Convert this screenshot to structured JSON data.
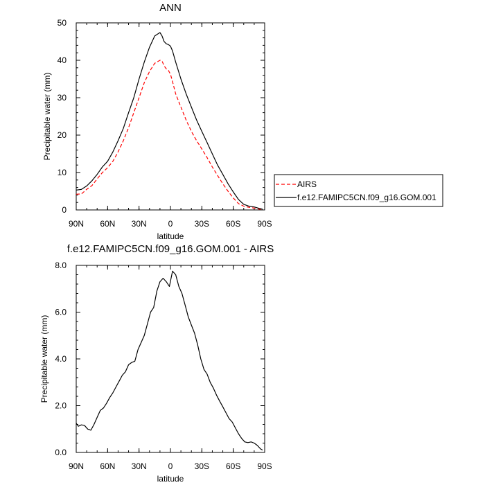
{
  "chart_data": [
    {
      "type": "line",
      "title": "ANN",
      "xlabel": "latitude",
      "ylabel": "Precipitable water (mm)",
      "xlim": [
        90,
        -90
      ],
      "ylim": [
        0,
        50
      ],
      "xticks": [
        90,
        60,
        30,
        0,
        -30,
        -60,
        -90
      ],
      "xtick_labels": [
        "90N",
        "60N",
        "30N",
        "0",
        "30S",
        "60S",
        "90S"
      ],
      "yticks": [
        0,
        10,
        20,
        30,
        40,
        50
      ],
      "ytick_labels": [
        "0",
        "10",
        "20",
        "30",
        "40",
        "50"
      ],
      "grid": false,
      "legend": {
        "position": "right",
        "entries": [
          "AIRS",
          "f.e12.FAMIPC5CN.f09_g16.GOM.001"
        ]
      },
      "series": [
        {
          "name": "AIRS",
          "color": "#ff0000",
          "dash": "dashed",
          "x": [
            90,
            85,
            80,
            75,
            70,
            65,
            60,
            55,
            50,
            45,
            40,
            35,
            30,
            25,
            20,
            15,
            10,
            8,
            6,
            4,
            2,
            0,
            -2,
            -5,
            -10,
            -15,
            -20,
            -25,
            -30,
            -35,
            -40,
            -45,
            -50,
            -55,
            -60,
            -65,
            -70,
            -75,
            -80,
            -85,
            -88
          ],
          "y": [
            4.2,
            4.3,
            5.5,
            6.5,
            8.3,
            10,
            11.3,
            13,
            15.5,
            18.5,
            22,
            26,
            30,
            34,
            37,
            39.2,
            40,
            39.8,
            38.5,
            37.7,
            37.3,
            36.3,
            34.3,
            31,
            27.5,
            24,
            21,
            18.5,
            16.3,
            14,
            11.5,
            9.2,
            7,
            5,
            3.2,
            1.7,
            1,
            0.7,
            0.5,
            0.2,
            0.1
          ]
        },
        {
          "name": "f.e12.FAMIPC5CN.f09_g16.GOM.001",
          "color": "#000000",
          "dash": "solid",
          "x": [
            90,
            85,
            80,
            75,
            70,
            65,
            60,
            55,
            50,
            45,
            40,
            35,
            30,
            25,
            20,
            15,
            10,
            8,
            6,
            4,
            2,
            0,
            -2,
            -5,
            -10,
            -15,
            -20,
            -25,
            -30,
            -35,
            -40,
            -45,
            -50,
            -55,
            -60,
            -65,
            -70,
            -75,
            -80,
            -85,
            -88
          ],
          "y": [
            5.3,
            5.5,
            6.4,
            7.8,
            9.5,
            11.5,
            13,
            15.5,
            18.5,
            21.8,
            26,
            30,
            35,
            39.5,
            43.5,
            46.5,
            47.4,
            46.5,
            45,
            44.4,
            44.2,
            43.8,
            42.5,
            39.5,
            35,
            31,
            27.5,
            24,
            21,
            18,
            15,
            12,
            9.5,
            7,
            4.8,
            2.8,
            1.5,
            1,
            0.8,
            0.4,
            0.2
          ]
        }
      ]
    },
    {
      "type": "line",
      "title": "f.e12.FAMIPC5CN.f09_g16.GOM.001 - AIRS",
      "xlabel": "latitude",
      "ylabel": "Precipitable water (mm)",
      "xlim": [
        90,
        -90
      ],
      "ylim": [
        0,
        8
      ],
      "xticks": [
        90,
        60,
        30,
        0,
        -30,
        -60,
        -90
      ],
      "xtick_labels": [
        "90N",
        "60N",
        "30N",
        "0",
        "30S",
        "60S",
        "90S"
      ],
      "yticks": [
        0,
        2,
        4,
        6,
        8
      ],
      "ytick_labels": [
        "0.0",
        "2.0",
        "4.0",
        "6.0",
        "8.0"
      ],
      "grid": false,
      "series": [
        {
          "color": "#000000",
          "dash": "solid",
          "x": [
            90,
            88,
            85,
            82,
            79,
            76,
            73,
            70,
            67,
            64,
            61,
            58,
            55,
            52,
            49,
            46,
            43,
            40,
            37,
            34,
            31,
            28,
            25,
            22,
            19,
            16,
            13,
            10,
            7,
            4,
            1,
            -2,
            -5,
            -8,
            -11,
            -14,
            -17,
            -20,
            -23,
            -26,
            -29,
            -32,
            -35,
            -38,
            -41,
            -44,
            -47,
            -50,
            -53,
            -56,
            -59,
            -62,
            -65,
            -68,
            -71,
            -74,
            -77,
            -80,
            -83,
            -86,
            -88
          ],
          "y": [
            1.25,
            1.12,
            1.18,
            1.15,
            1.0,
            0.95,
            1.2,
            1.5,
            1.8,
            1.9,
            2.1,
            2.35,
            2.55,
            2.8,
            3.05,
            3.3,
            3.45,
            3.75,
            3.85,
            3.9,
            4.4,
            4.7,
            5.0,
            5.5,
            6.0,
            6.2,
            6.9,
            7.3,
            7.45,
            7.3,
            7.1,
            7.75,
            7.6,
            7.1,
            6.8,
            6.3,
            5.8,
            5.45,
            5.1,
            4.6,
            4.0,
            3.55,
            3.35,
            3.0,
            2.75,
            2.45,
            2.2,
            1.95,
            1.7,
            1.45,
            1.3,
            1.05,
            0.8,
            0.6,
            0.45,
            0.42,
            0.45,
            0.4,
            0.3,
            0.15,
            0.1
          ]
        }
      ]
    }
  ]
}
